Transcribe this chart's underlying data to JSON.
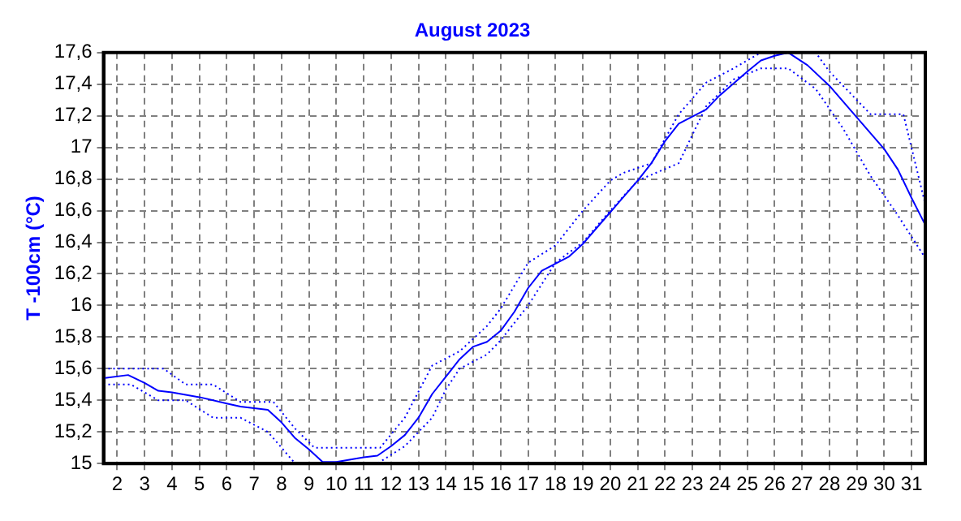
{
  "chart_data": {
    "type": "line",
    "title": "August 2023",
    "ylabel": "T -100cm (°C)",
    "xlim": [
      1.5,
      31.5
    ],
    "xticks": [
      2,
      3,
      4,
      5,
      6,
      7,
      8,
      9,
      10,
      11,
      12,
      13,
      14,
      15,
      16,
      17,
      18,
      19,
      20,
      21,
      22,
      23,
      24,
      25,
      26,
      27,
      28,
      29,
      30,
      31
    ],
    "ylim": [
      15,
      17.6
    ],
    "yticks": [
      15,
      {
        "value": 15.2,
        "label": "15,2"
      },
      {
        "value": 15.4,
        "label": "15,4"
      },
      {
        "value": 15.6,
        "label": "15,6"
      },
      {
        "value": 15.8,
        "label": "15,8"
      },
      16,
      {
        "value": 16.2,
        "label": "16,2"
      },
      {
        "value": 16.4,
        "label": "16,4"
      },
      {
        "value": 16.6,
        "label": "16,6"
      },
      {
        "value": 16.8,
        "label": "16,8"
      },
      17,
      {
        "value": 17.2,
        "label": "17,2"
      },
      {
        "value": 17.4,
        "label": "17,4"
      },
      {
        "value": 17.6,
        "label": "17,6"
      }
    ],
    "grid": true,
    "legend": false,
    "marker": "none",
    "series": [
      {
        "color": "#0000ff",
        "line_style": "solid",
        "x": [
          1.5,
          2.4,
          3,
          3.5,
          4,
          5,
          6,
          6.5,
          7.5,
          8,
          8.5,
          9,
          9.5,
          10,
          11,
          11.5,
          12,
          12.5,
          13,
          13.5,
          14,
          14.5,
          15,
          15.5,
          16,
          16.5,
          17,
          17.5,
          18.5,
          19,
          20,
          21,
          21.5,
          22,
          22.5,
          23.5,
          24,
          25,
          25.5,
          26,
          26.5,
          27.2,
          28,
          29,
          30,
          30.5,
          31,
          31.5
        ],
        "values": [
          15.54,
          15.56,
          15.51,
          15.46,
          15.45,
          15.42,
          15.38,
          15.36,
          15.34,
          15.26,
          15.16,
          15.09,
          15.01,
          15.01,
          15.04,
          15.05,
          15.11,
          15.18,
          15.29,
          15.44,
          15.55,
          15.66,
          15.74,
          15.77,
          15.84,
          15.96,
          16.11,
          16.22,
          16.31,
          16.39,
          16.59,
          16.79,
          16.9,
          17.04,
          17.15,
          17.24,
          17.33,
          17.48,
          17.55,
          17.58,
          17.6,
          17.52,
          17.39,
          17.19,
          16.99,
          16.86,
          16.68,
          16.51
        ]
      },
      {
        "color": "#0000ff",
        "line_style": "dotted",
        "x": [
          1.5,
          3.7,
          4.5,
          5.5,
          6.5,
          7.7,
          8.5,
          9.2,
          11.6,
          12.5,
          13.5,
          14.5,
          15.5,
          16,
          17,
          18,
          19,
          20,
          20.5,
          21.5,
          22.5,
          23.5,
          24.5,
          25.5,
          27.5,
          28,
          29.5,
          30.7,
          31.5
        ],
        "values": [
          15.6,
          15.6,
          15.5,
          15.5,
          15.39,
          15.39,
          15.22,
          15.1,
          15.1,
          15.29,
          15.62,
          15.71,
          15.87,
          15.98,
          16.27,
          16.38,
          16.6,
          16.79,
          16.84,
          16.9,
          17.21,
          17.41,
          17.5,
          17.6,
          17.6,
          17.48,
          17.21,
          17.21,
          16.64
        ]
      },
      {
        "color": "#0000ff",
        "line_style": "dotted",
        "x": [
          1.5,
          2.5,
          3.5,
          4.5,
          5.5,
          6.5,
          7.5,
          8.5,
          11.5,
          12.5,
          13.5,
          14,
          14.5,
          15.5,
          16,
          17,
          18,
          19,
          20,
          21,
          22.5,
          23.5,
          24.5,
          25.5,
          26.5,
          27.5,
          28.5,
          29.5,
          30.5,
          31.5
        ],
        "values": [
          15.5,
          15.5,
          15.4,
          15.4,
          15.29,
          15.29,
          15.2,
          15,
          15,
          15.11,
          15.29,
          15.47,
          15.6,
          15.69,
          15.78,
          16,
          16.27,
          16.4,
          16.6,
          16.79,
          16.9,
          17.26,
          17.43,
          17.5,
          17.5,
          17.37,
          17.12,
          16.82,
          16.57,
          16.3
        ]
      }
    ]
  }
}
